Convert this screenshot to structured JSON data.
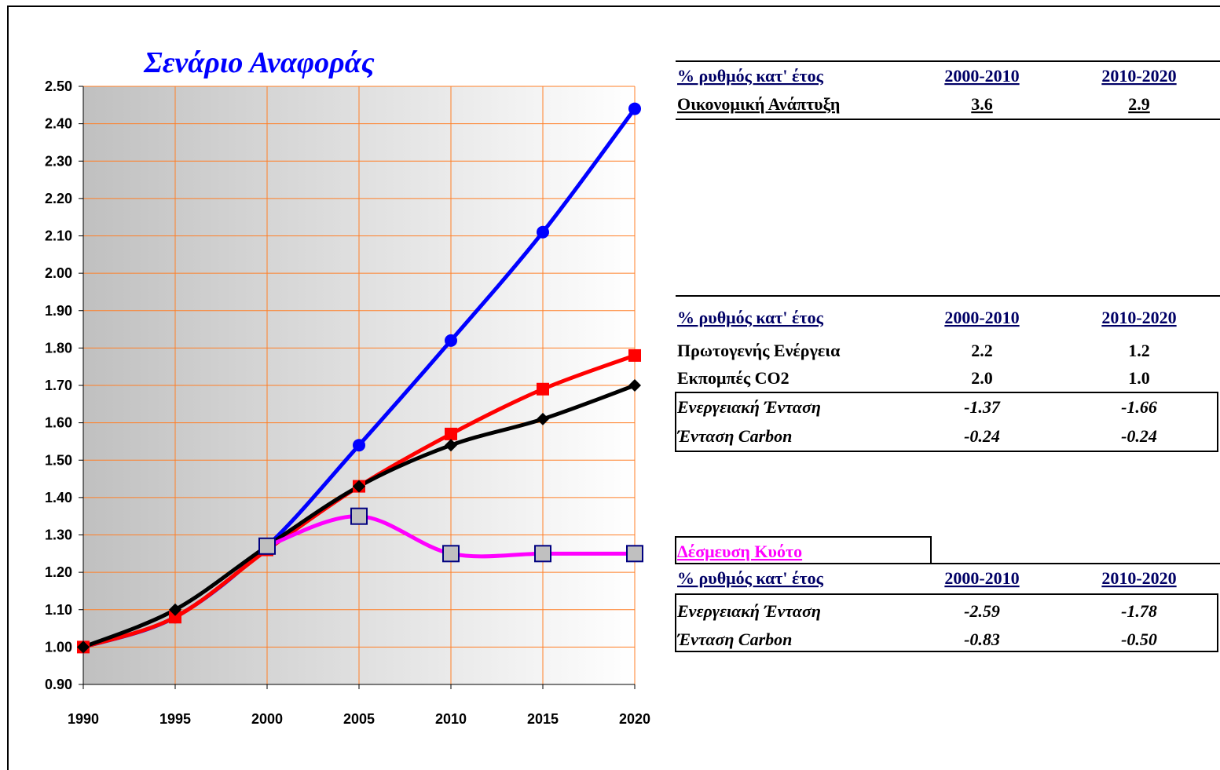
{
  "chart_data": {
    "type": "line",
    "title": "Σενάριο Αναφοράς",
    "x": [
      1990,
      1995,
      2000,
      2005,
      2010,
      2015,
      2020
    ],
    "xlim": [
      1990,
      2020
    ],
    "xticks": [
      1990,
      1995,
      2000,
      2005,
      2010,
      2015,
      2020
    ],
    "ylim": [
      0.9,
      2.5
    ],
    "yticks": [
      {
        "value": 0.9,
        "label": "0.90"
      },
      {
        "value": 1.0,
        "label": "1.00"
      },
      {
        "value": 1.1,
        "label": "1.10"
      },
      {
        "value": 1.2,
        "label": "1.20"
      },
      {
        "value": 1.3,
        "label": "1.30"
      },
      {
        "value": 1.4,
        "label": "1.40"
      },
      {
        "value": 1.5,
        "label": "1.50"
      },
      {
        "value": 1.6,
        "label": "1.60"
      },
      {
        "value": 1.7,
        "label": "1.70"
      },
      {
        "value": 1.8,
        "label": "1.80"
      },
      {
        "value": 1.9,
        "label": "1.90"
      },
      {
        "value": 2.0,
        "label": "2.00"
      },
      {
        "value": 2.1,
        "label": "2.10"
      },
      {
        "value": 2.2,
        "label": "2.20"
      },
      {
        "value": 2.3,
        "label": "2.30"
      },
      {
        "value": 2.4,
        "label": "2.40"
      },
      {
        "value": 2.5,
        "label": "2.50"
      }
    ],
    "grid": true,
    "grid_color": "#ff7f27",
    "series": [
      {
        "color": "#0000ff",
        "marker": "circle",
        "marker_fill": "#0000ff",
        "values": [
          1.0,
          1.08,
          1.27,
          1.54,
          1.82,
          2.11,
          2.44
        ]
      },
      {
        "color": "#ff0000",
        "marker": "square",
        "marker_fill": "#ff0000",
        "values": [
          1.0,
          1.08,
          1.26,
          1.43,
          1.57,
          1.69,
          1.78
        ]
      },
      {
        "color": "#000000",
        "marker": "diamond",
        "marker_fill": "#000000",
        "values": [
          1.0,
          1.1,
          1.27,
          1.43,
          1.54,
          1.61,
          1.7
        ]
      },
      {
        "color": "#ff00ff",
        "marker": "square",
        "marker_fill": "#c0c0c0",
        "values": [
          null,
          null,
          1.27,
          1.35,
          1.25,
          1.25,
          1.25
        ]
      }
    ]
  },
  "tables": [
    {
      "header": [
        "% ρυθμός κατ' έτος",
        "2000-2010",
        "2010-2020"
      ],
      "rows": [
        [
          "Οικονομική Ανάπτυξη",
          "3.6",
          "2.9"
        ]
      ]
    },
    {
      "header": [
        "% ρυθμός κατ' έτος",
        "2000-2010",
        "2010-2020"
      ],
      "rows": [
        [
          "Πρωτογενής Ενέργεια",
          "2.2",
          "1.2"
        ],
        [
          "Εκπομπές CO2",
          "2.0",
          "1.0"
        ],
        [
          "Ενεργειακή Ένταση",
          "-1.37",
          "-1.66"
        ],
        [
          "Ένταση Carbon",
          "-0.24",
          "-0.24"
        ]
      ]
    },
    {
      "title": "Δέσμευση Κυότο",
      "header": [
        "% ρυθμός κατ' έτος",
        "2000-2010",
        "2010-2020"
      ],
      "rows": [
        [
          "Ενεργειακή Ένταση",
          "-2.59",
          "-1.78"
        ],
        [
          "Ένταση Carbon",
          "-0.83",
          "-0.50"
        ]
      ]
    }
  ]
}
